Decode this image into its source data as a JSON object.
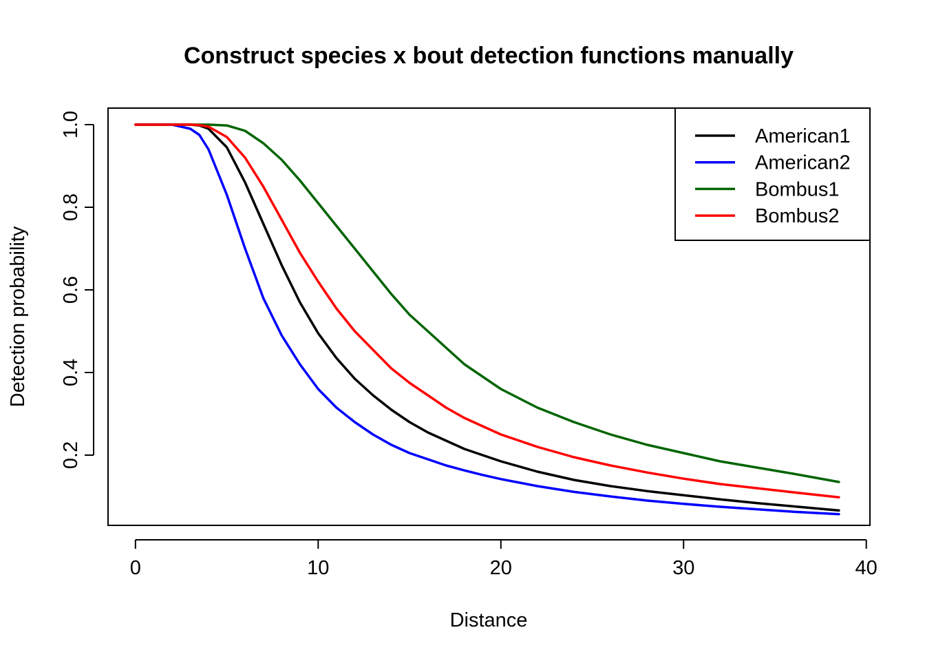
{
  "chart_data": {
    "type": "line",
    "title": "Construct species x bout detection functions manually",
    "xlabel": "Distance",
    "ylabel": "Detection probability",
    "xlim": [
      -1.5,
      40.2
    ],
    "ylim": [
      0.03,
      1.04
    ],
    "xticks": [
      0,
      10,
      20,
      30,
      40
    ],
    "yticks": [
      0.2,
      0.4,
      0.6,
      0.8,
      1.0
    ],
    "xtick_labels": [
      "0",
      "10",
      "20",
      "30",
      "40"
    ],
    "ytick_labels": [
      "0.2",
      "0.4",
      "0.6",
      "0.8",
      "1.0"
    ],
    "grid": false,
    "legend_position": "top-right",
    "x": [
      0,
      1,
      2,
      3,
      3.5,
      4,
      5,
      6,
      7,
      8,
      9,
      10,
      11,
      12,
      13,
      14,
      15,
      16,
      17,
      18,
      19,
      20,
      22,
      24,
      26,
      28,
      30,
      32,
      34,
      36,
      38.5
    ],
    "series": [
      {
        "name": "American1",
        "color": "#000000",
        "values": [
          1.0,
          1.0,
          1.0,
          1.0,
          0.998,
          0.99,
          0.945,
          0.86,
          0.76,
          0.66,
          0.57,
          0.495,
          0.435,
          0.385,
          0.345,
          0.31,
          0.28,
          0.255,
          0.235,
          0.215,
          0.2,
          0.185,
          0.16,
          0.14,
          0.125,
          0.113,
          0.103,
          0.093,
          0.084,
          0.076,
          0.066
        ]
      },
      {
        "name": "American2",
        "color": "#0000ff",
        "values": [
          1.0,
          1.0,
          1.0,
          0.99,
          0.975,
          0.94,
          0.83,
          0.7,
          0.58,
          0.49,
          0.42,
          0.36,
          0.315,
          0.28,
          0.25,
          0.225,
          0.205,
          0.19,
          0.175,
          0.163,
          0.152,
          0.142,
          0.125,
          0.111,
          0.1,
          0.09,
          0.082,
          0.075,
          0.069,
          0.063,
          0.057
        ]
      },
      {
        "name": "Bombus1",
        "color": "#006400",
        "values": [
          1.0,
          1.0,
          1.0,
          1.0,
          1.0,
          1.0,
          0.998,
          0.985,
          0.955,
          0.915,
          0.865,
          0.81,
          0.755,
          0.7,
          0.645,
          0.59,
          0.54,
          0.5,
          0.46,
          0.42,
          0.39,
          0.36,
          0.315,
          0.28,
          0.25,
          0.225,
          0.205,
          0.185,
          0.17,
          0.155,
          0.135
        ]
      },
      {
        "name": "Bombus2",
        "color": "#ff0000",
        "values": [
          1.0,
          1.0,
          1.0,
          1.0,
          0.999,
          0.995,
          0.97,
          0.92,
          0.85,
          0.77,
          0.69,
          0.62,
          0.555,
          0.5,
          0.455,
          0.41,
          0.375,
          0.345,
          0.315,
          0.29,
          0.27,
          0.25,
          0.22,
          0.195,
          0.175,
          0.158,
          0.143,
          0.13,
          0.12,
          0.11,
          0.098
        ]
      }
    ]
  }
}
